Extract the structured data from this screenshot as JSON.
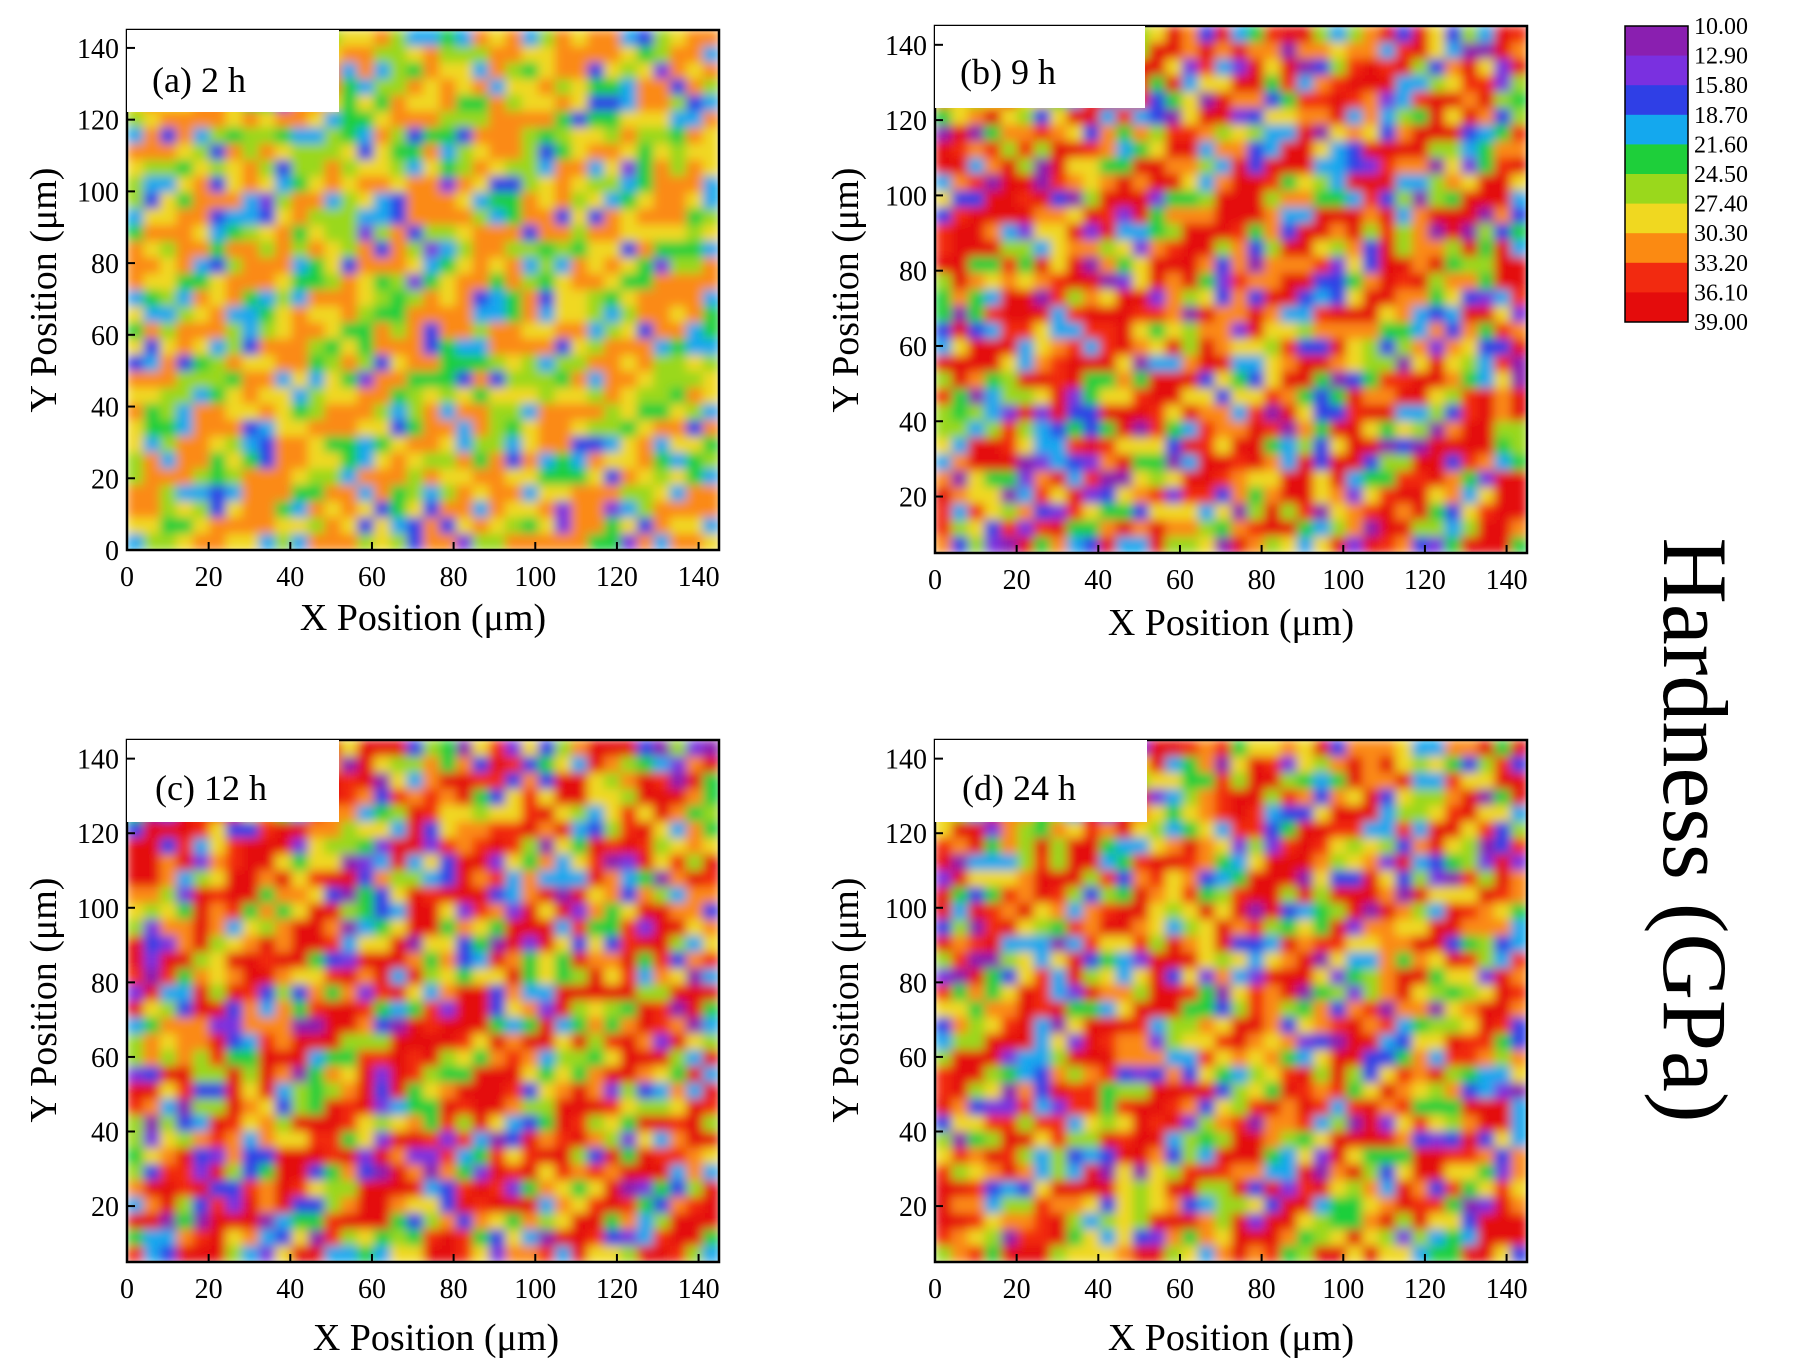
{
  "chart_data": [
    {
      "type": "heatmap",
      "panel_label": "(a) 2 h",
      "xlabel": "X Position (μm)",
      "ylabel": "Y Position (μm)",
      "xlim": [
        0,
        145
      ],
      "ylim": [
        0,
        145
      ],
      "xticks": [
        "0",
        "20",
        "40",
        "60",
        "80",
        "100",
        "120",
        "140"
      ],
      "yticks": [
        "0",
        "20",
        "40",
        "60",
        "80",
        "100",
        "120",
        "140"
      ],
      "value_range_gpa": [
        15,
        33
      ],
      "dominant_color_gpa": 29,
      "colormap_variable": "Hardness (GPa)"
    },
    {
      "type": "heatmap",
      "panel_label": "(b) 9 h",
      "xlabel": "X Position (μm)",
      "ylabel": "Y Position (μm)",
      "xlim": [
        0,
        145
      ],
      "ylim": [
        5,
        145
      ],
      "xticks": [
        "0",
        "20",
        "40",
        "60",
        "80",
        "100",
        "120",
        "140"
      ],
      "yticks": [
        "20",
        "40",
        "60",
        "80",
        "100",
        "120",
        "140"
      ],
      "value_range_gpa": [
        10,
        39
      ],
      "dominant_color_gpa": 32,
      "colormap_variable": "Hardness (GPa)"
    },
    {
      "type": "heatmap",
      "panel_label": "(c) 12 h",
      "xlabel": "X Position (μm)",
      "ylabel": "Y Position (μm)",
      "xlim": [
        0,
        145
      ],
      "ylim": [
        5,
        145
      ],
      "xticks": [
        "0",
        "20",
        "40",
        "60",
        "80",
        "100",
        "120",
        "140"
      ],
      "yticks": [
        "20",
        "40",
        "60",
        "80",
        "100",
        "120",
        "140"
      ],
      "value_range_gpa": [
        10,
        39
      ],
      "dominant_color_gpa": 32,
      "colormap_variable": "Hardness (GPa)"
    },
    {
      "type": "heatmap",
      "panel_label": "(d) 24 h",
      "xlabel": "X Position (μm)",
      "ylabel": "Y Position (μm)",
      "xlim": [
        0,
        145
      ],
      "ylim": [
        5,
        145
      ],
      "xticks": [
        "0",
        "20",
        "40",
        "60",
        "80",
        "100",
        "120",
        "140"
      ],
      "yticks": [
        "20",
        "40",
        "60",
        "80",
        "100",
        "120",
        "140"
      ],
      "value_range_gpa": [
        10,
        39
      ],
      "dominant_color_gpa": 31,
      "colormap_variable": "Hardness (GPa)"
    }
  ],
  "colorbar": {
    "title": "Hardness (GPa)",
    "levels": [
      "10.00",
      "12.90",
      "15.80",
      "18.70",
      "21.60",
      "24.50",
      "27.40",
      "30.30",
      "33.20",
      "36.10",
      "39.00"
    ],
    "colors": [
      "#8a1fb0",
      "#7a30e0",
      "#2f3fe6",
      "#14a8ee",
      "#1ecf3a",
      "#9ad81c",
      "#f0d820",
      "#fb8a12",
      "#f22a10",
      "#e40c0c",
      "#980808"
    ]
  }
}
